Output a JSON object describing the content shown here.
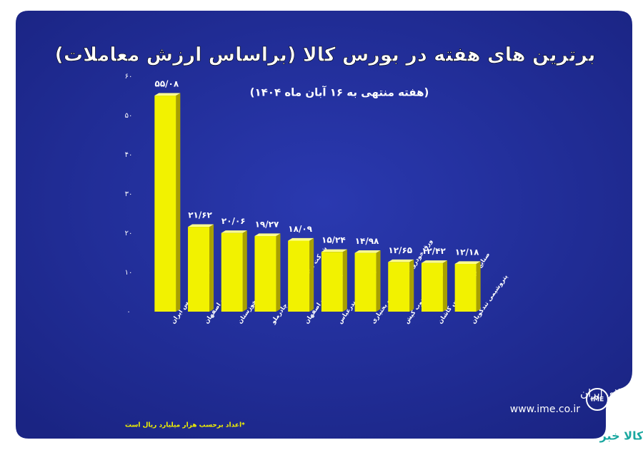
{
  "chart_data": {
    "type": "bar",
    "title": "برترین های هفته در بورس کالا (براساس ارزش معاملات)",
    "subtitle": "(هفته منتهی به ۱۶ آبان ماه ۱۴۰۴)",
    "categories": [
      "ملی صنایع مس ایران",
      "فولاد مبارکه اصفهان",
      "فولاد خوزستان",
      "شرکت معدنی وصنعتی چادرملو",
      "پالایش نفت اصفهان",
      "پالایش نفت بندرعباس",
      "ورق خودروی چهارمحال و بختیاری",
      "فولاد کاوه جنوب کیش",
      "صنایع نورد دنیای مس کاشان",
      "پتروشیمی تندگویان"
    ],
    "values": [
      55.08,
      21.62,
      20.06,
      19.27,
      18.09,
      15.24,
      14.98,
      12.65,
      12.42,
      12.18
    ],
    "value_labels": [
      "۵۵/۰۸",
      "۲۱/۶۲",
      "۲۰/۰۶",
      "۱۹/۲۷",
      "۱۸/۰۹",
      "۱۵/۲۴",
      "۱۴/۹۸",
      "۱۲/۶۵",
      "۱۲/۴۲",
      "۱۲/۱۸"
    ],
    "color": "#f2f200",
    "ylim": [
      0,
      60
    ],
    "yticks": [
      {
        "value": 0,
        "label": "۰"
      },
      {
        "value": 10,
        "label": "۱۰"
      },
      {
        "value": 20,
        "label": "۲۰"
      },
      {
        "value": 30,
        "label": "۳۰"
      },
      {
        "value": 40,
        "label": "۴۰"
      },
      {
        "value": 50,
        "label": "۵۰"
      },
      {
        "value": 60,
        "label": "۶۰"
      }
    ],
    "grid": false,
    "note": "*اعداد برحسب هزار میلیارد ریال است"
  },
  "logo": {
    "name": "بورس کالای ایران",
    "url": "www.ime.co.ir"
  },
  "watermark": "کالا خبر"
}
